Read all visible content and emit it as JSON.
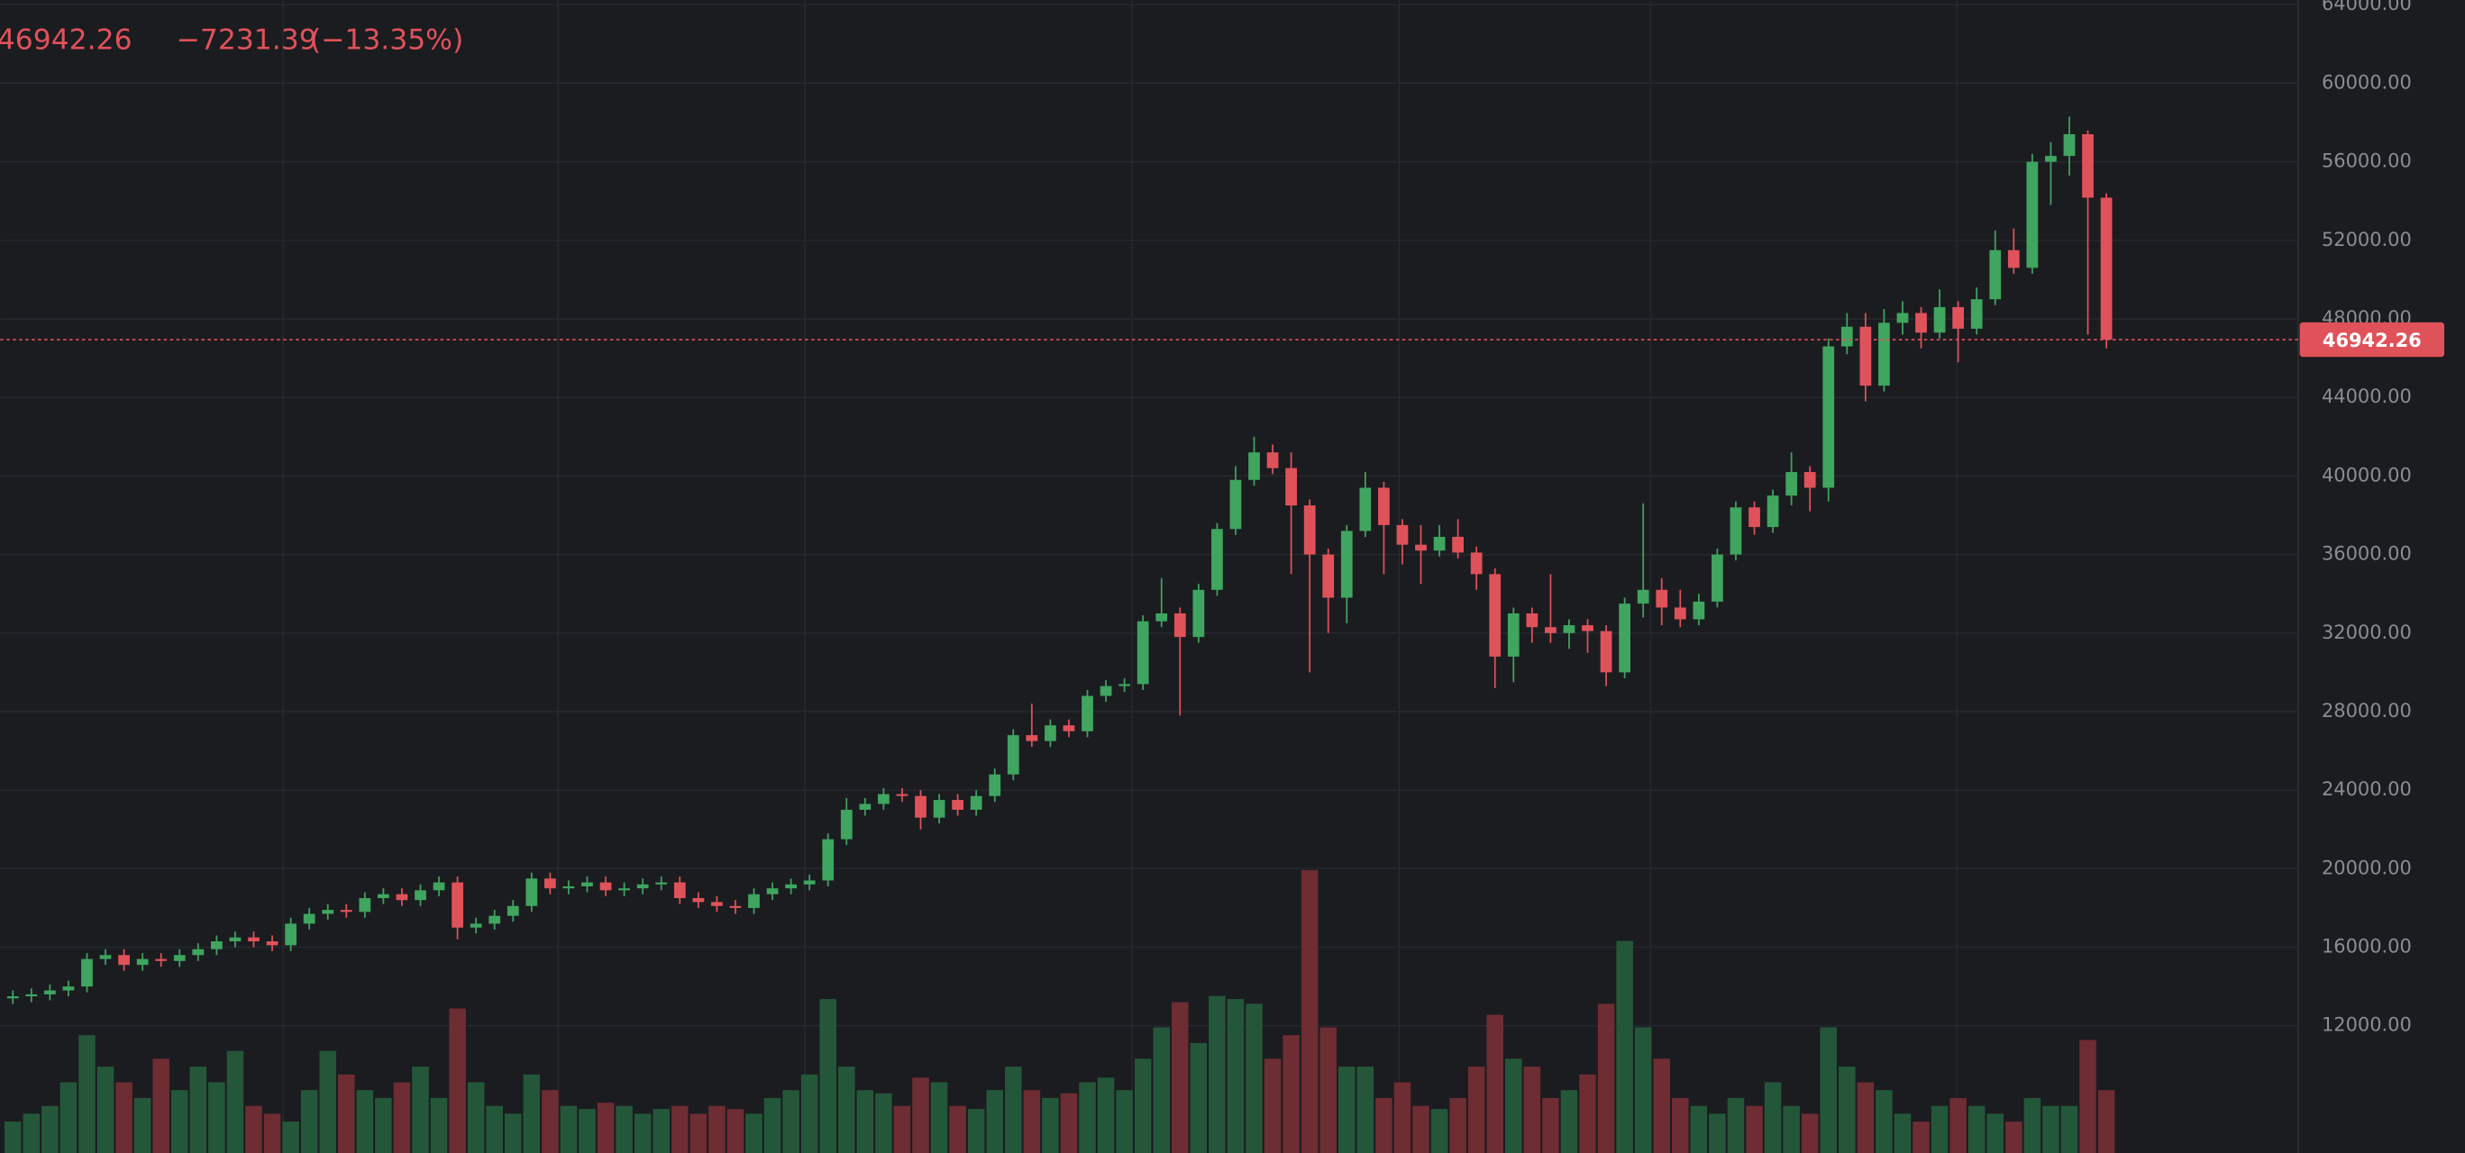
{
  "chart_data": {
    "type": "candlestick",
    "header_change": "−7231.39",
    "header_change_pct": "(−13.35%)",
    "ylim": [
      5520,
      64240
    ],
    "yticks": [
      {
        "value": 12000,
        "label": "12000.00"
      },
      {
        "value": 16000,
        "label": "16000.00"
      },
      {
        "value": 20000,
        "label": "20000.00"
      },
      {
        "value": 24000,
        "label": "24000.00"
      },
      {
        "value": 28000,
        "label": "28000.00"
      },
      {
        "value": 32000,
        "label": "32000.00"
      },
      {
        "value": 36000,
        "label": "36000.00"
      },
      {
        "value": 40000,
        "label": "40000.00"
      },
      {
        "value": 44000,
        "label": "44000.00"
      },
      {
        "value": 48000,
        "label": "48000.00"
      },
      {
        "value": 52000,
        "label": "52000.00"
      },
      {
        "value": 56000,
        "label": "56000.00"
      },
      {
        "value": 60000,
        "label": "60000.00"
      },
      {
        "value": 64000,
        "label": "64000.00"
      }
    ],
    "grid": true,
    "up_color": "#3fa55f",
    "down_color": "#e0525a",
    "up_volume_color": "#24573a",
    "down_volume_color": "#6e2c33",
    "open": [
      13400,
      13500,
      13600,
      13800,
      14000,
      15400,
      15600,
      15100,
      15400,
      15300,
      15600,
      15900,
      16300,
      16500,
      16300,
      16100,
      17200,
      17700,
      17900,
      17800,
      18500,
      18700,
      18400,
      18900,
      19300,
      17000,
      17200,
      17600,
      18100,
      19500,
      19000,
      19100,
      19300,
      18900,
      19000,
      19200,
      19300,
      18500,
      18300,
      18100,
      18000,
      18700,
      19000,
      19200,
      19400,
      21500,
      23000,
      23300,
      23800,
      23700,
      22600,
      23500,
      23000,
      23700,
      24800,
      26800,
      26500,
      27300,
      27000,
      28800,
      29300,
      29400,
      32600,
      33000,
      31800,
      34200,
      37300,
      39800,
      41200,
      40400,
      38500,
      36000,
      33800,
      37200,
      39400,
      37500,
      36500,
      36200,
      36900,
      36100,
      35000,
      30800,
      33000,
      32300,
      32000,
      32400,
      32100,
      30000,
      33500,
      34200,
      33300,
      32700,
      33600,
      36000,
      38400,
      37400,
      39000,
      40200,
      39400,
      46600,
      47600,
      44600,
      47800,
      48300,
      47300,
      48600,
      47500,
      49000,
      51500,
      50600,
      56000,
      56300,
      57405,
      54173.65
    ],
    "high": [
      13800,
      13900,
      14100,
      14300,
      15700,
      15900,
      15900,
      15700,
      15700,
      15900,
      16200,
      16600,
      16800,
      16800,
      16600,
      17500,
      18000,
      18200,
      18200,
      18800,
      19000,
      19000,
      19200,
      19600,
      19600,
      17500,
      17900,
      18400,
      19800,
      19800,
      19400,
      19600,
      19600,
      19300,
      19500,
      19600,
      19600,
      18800,
      18600,
      18400,
      19000,
      19300,
      19500,
      19700,
      21800,
      23600,
      23600,
      24100,
      24100,
      24000,
      23800,
      23800,
      24000,
      25100,
      27100,
      28400,
      27600,
      27600,
      29100,
      29600,
      29700,
      32900,
      34800,
      33300,
      34500,
      37600,
      40500,
      42000,
      41600,
      41200,
      38800,
      36300,
      37500,
      40200,
      39700,
      37800,
      37500,
      37500,
      37800,
      36400,
      35300,
      33300,
      33300,
      35000,
      32700,
      32700,
      32400,
      33800,
      38600,
      34800,
      34200,
      34000,
      36300,
      38700,
      38700,
      39300,
      41200,
      40500,
      47000,
      48300,
      48300,
      48500,
      48900,
      48600,
      49500,
      48900,
      49600,
      52500,
      52600,
      56400,
      57000,
      58300,
      57600,
      54400
    ],
    "low": [
      13100,
      13200,
      13300,
      13500,
      13700,
      15100,
      14800,
      14800,
      15000,
      15000,
      15300,
      15600,
      16000,
      16000,
      15800,
      15800,
      16900,
      17400,
      17500,
      17500,
      18200,
      18100,
      18100,
      18600,
      16400,
      16700,
      16900,
      17300,
      17800,
      18700,
      18700,
      18800,
      18600,
      18600,
      18700,
      18900,
      18200,
      18000,
      17800,
      17700,
      17700,
      18400,
      18700,
      18900,
      19100,
      21200,
      22700,
      23000,
      23400,
      22000,
      22300,
      22700,
      22700,
      23400,
      24500,
      26200,
      26200,
      26700,
      26700,
      28500,
      29000,
      29100,
      32300,
      27800,
      31500,
      33900,
      37000,
      39500,
      40100,
      35000,
      30000,
      32000,
      32500,
      36900,
      35000,
      35500,
      34500,
      35900,
      35800,
      34200,
      29200,
      29500,
      31500,
      31500,
      31200,
      31000,
      29300,
      29700,
      32800,
      32400,
      32300,
      32400,
      33300,
      35700,
      37000,
      37100,
      38500,
      38200,
      38700,
      46200,
      43800,
      44300,
      47200,
      46500,
      47000,
      45800,
      47200,
      48700,
      50300,
      50300,
      53800,
      55300,
      47200,
      46500
    ],
    "close": [
      13500,
      13600,
      13800,
      14000,
      15400,
      15600,
      15100,
      15400,
      15300,
      15600,
      15900,
      16300,
      16500,
      16300,
      16100,
      17200,
      17700,
      17900,
      17800,
      18500,
      18700,
      18400,
      18900,
      19300,
      17000,
      17200,
      17600,
      18100,
      19500,
      19000,
      19100,
      19300,
      18900,
      19000,
      19200,
      19300,
      18500,
      18300,
      18100,
      18000,
      18700,
      19000,
      19200,
      19400,
      21500,
      23000,
      23300,
      23800,
      23700,
      22600,
      23500,
      23000,
      23700,
      24800,
      26800,
      26500,
      27300,
      27000,
      28800,
      29300,
      29400,
      32600,
      33000,
      31800,
      34200,
      37300,
      39800,
      41200,
      40400,
      38500,
      36000,
      33800,
      37200,
      39400,
      37500,
      36500,
      36200,
      36900,
      36100,
      35000,
      30800,
      33000,
      32300,
      32000,
      32400,
      32100,
      30000,
      33500,
      34200,
      33300,
      32700,
      33600,
      36000,
      38400,
      37400,
      39000,
      40200,
      39400,
      46600,
      47600,
      44600,
      47800,
      48300,
      47300,
      48600,
      47500,
      49000,
      51500,
      50600,
      56000,
      56300,
      57405,
      54173.65,
      46942.26
    ],
    "volume": [
      20,
      25,
      30,
      45,
      75,
      55,
      45,
      35,
      60,
      40,
      55,
      45,
      65,
      30,
      25,
      20,
      40,
      65,
      50,
      40,
      35,
      45,
      55,
      35,
      92,
      45,
      30,
      25,
      50,
      40,
      30,
      28,
      32,
      30,
      25,
      28,
      30,
      25,
      30,
      28,
      25,
      35,
      40,
      50,
      98,
      55,
      40,
      38,
      30,
      48,
      45,
      30,
      28,
      40,
      55,
      40,
      35,
      38,
      45,
      48,
      40,
      60,
      80,
      96,
      70,
      100,
      98,
      95,
      60,
      75,
      180,
      80,
      55,
      55,
      35,
      45,
      30,
      28,
      35,
      55,
      88,
      60,
      55,
      35,
      40,
      50,
      95,
      135,
      80,
      60,
      35,
      30,
      25,
      35,
      30,
      45,
      30,
      25,
      80,
      55,
      45,
      40,
      25,
      20,
      30,
      35,
      30,
      25,
      20,
      35,
      30,
      30,
      72,
      40
    ]
  }
}
